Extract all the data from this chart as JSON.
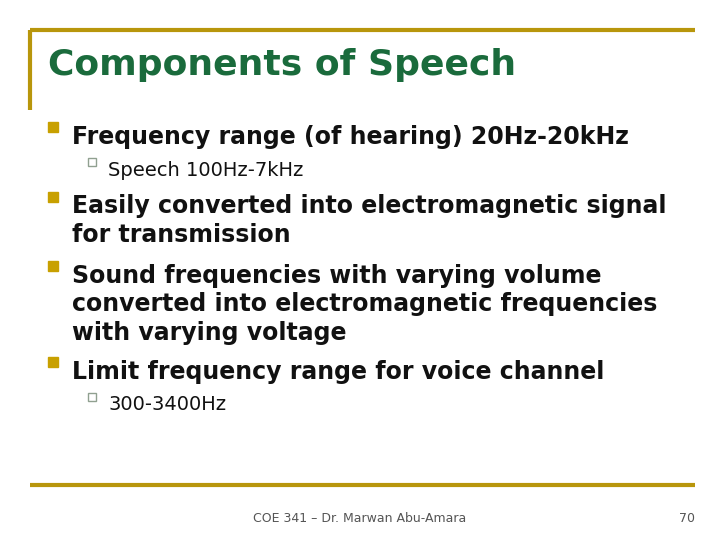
{
  "title": "Components of Speech",
  "title_color": "#1a6b3c",
  "background_color": "#ffffff",
  "border_color": "#b8960c",
  "footer_text": "COE 341 – Dr. Marwan Abu-Amara",
  "page_number": "70",
  "bullet_color": "#c8a000",
  "sub_bullet_color": "#90a090",
  "text_color": "#111111",
  "bullet_items": [
    {
      "text": "Frequency range (of hearing) 20Hz-20kHz",
      "sub": [
        "Speech 100Hz-7kHz"
      ]
    },
    {
      "text": "Easily converted into electromagnetic signal\nfor transmission",
      "sub": []
    },
    {
      "text": "Sound frequencies with varying volume\nconverted into electromagnetic frequencies\nwith varying voltage",
      "sub": []
    },
    {
      "text": "Limit frequency range for voice channel",
      "sub": [
        "300-3400Hz"
      ]
    }
  ],
  "main_font_size": 17,
  "sub_font_size": 14,
  "title_font_size": 26,
  "footer_font_size": 9
}
